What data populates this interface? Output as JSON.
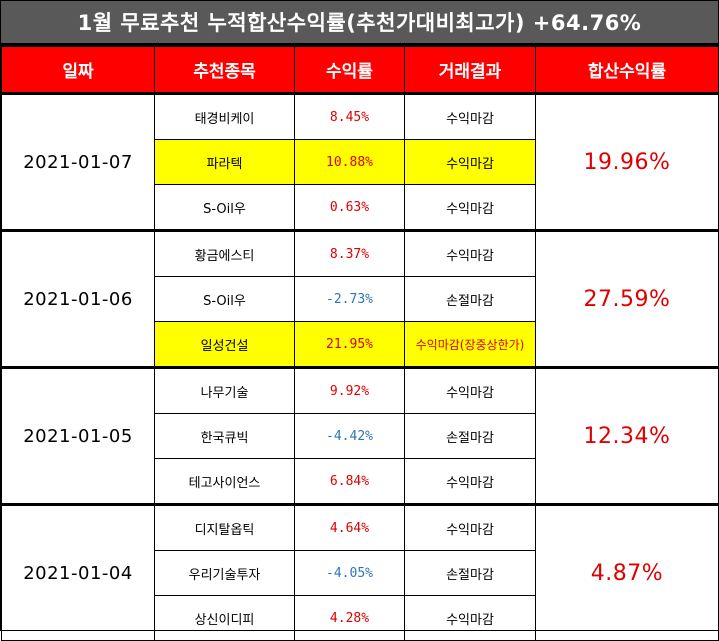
{
  "title": "1월 무료추천 누적합산수익률(추천가대비최고가) +64.76%",
  "headers": [
    "일짜",
    "추천종목",
    "수익률",
    "거래결과",
    "합산수익률"
  ],
  "groups": [
    {
      "date": "2021-01-07",
      "cumulative": "19.96%",
      "rows": [
        {
          "stock": "태경비케이",
          "rate": "8.45%",
          "result": "수익마감",
          "highlight": false,
          "negative": false
        },
        {
          "stock": "파라텍",
          "rate": "10.88%",
          "result": "수익마감",
          "highlight": true,
          "negative": false
        },
        {
          "stock": "S-Oil우",
          "rate": "0.63%",
          "result": "수익마감",
          "highlight": false,
          "negative": false
        }
      ]
    },
    {
      "date": "2021-01-06",
      "cumulative": "27.59%",
      "rows": [
        {
          "stock": "황금에스티",
          "rate": "8.37%",
          "result": "수익마감",
          "highlight": false,
          "negative": false
        },
        {
          "stock": "S-Oil우",
          "rate": "-2.73%",
          "result": "손절마감",
          "highlight": false,
          "negative": true
        },
        {
          "stock": "일성건설",
          "rate": "21.95%",
          "result": "수익마감(장중상한가)",
          "highlight": true,
          "negative": false,
          "special": true
        }
      ]
    },
    {
      "date": "2021-01-05",
      "cumulative": "12.34%",
      "rows": [
        {
          "stock": "나무기술",
          "rate": "9.92%",
          "result": "수익마감",
          "highlight": false,
          "negative": false
        },
        {
          "stock": "한국큐빅",
          "rate": "-4.42%",
          "result": "손절마감",
          "highlight": false,
          "negative": true
        },
        {
          "stock": "테고사이언스",
          "rate": "6.84%",
          "result": "수익마감",
          "highlight": false,
          "negative": false
        }
      ]
    },
    {
      "date": "2021-01-04",
      "cumulative": "4.87%",
      "rows": [
        {
          "stock": "디지탈옵틱",
          "rate": "4.64%",
          "result": "수익마감",
          "highlight": false,
          "negative": false
        },
        {
          "stock": "우리기술투자",
          "rate": "-4.05%",
          "result": "손절마감",
          "highlight": false,
          "negative": true
        },
        {
          "stock": "상신이디피",
          "rate": "4.28%",
          "result": "수익마감",
          "highlight": false,
          "negative": false
        }
      ]
    }
  ],
  "colors": {
    "header_bg": "#ff0000",
    "title_bg": "#595959",
    "highlight": "#ffff00",
    "positive": "#e00000",
    "negative": "#2e75b6"
  }
}
